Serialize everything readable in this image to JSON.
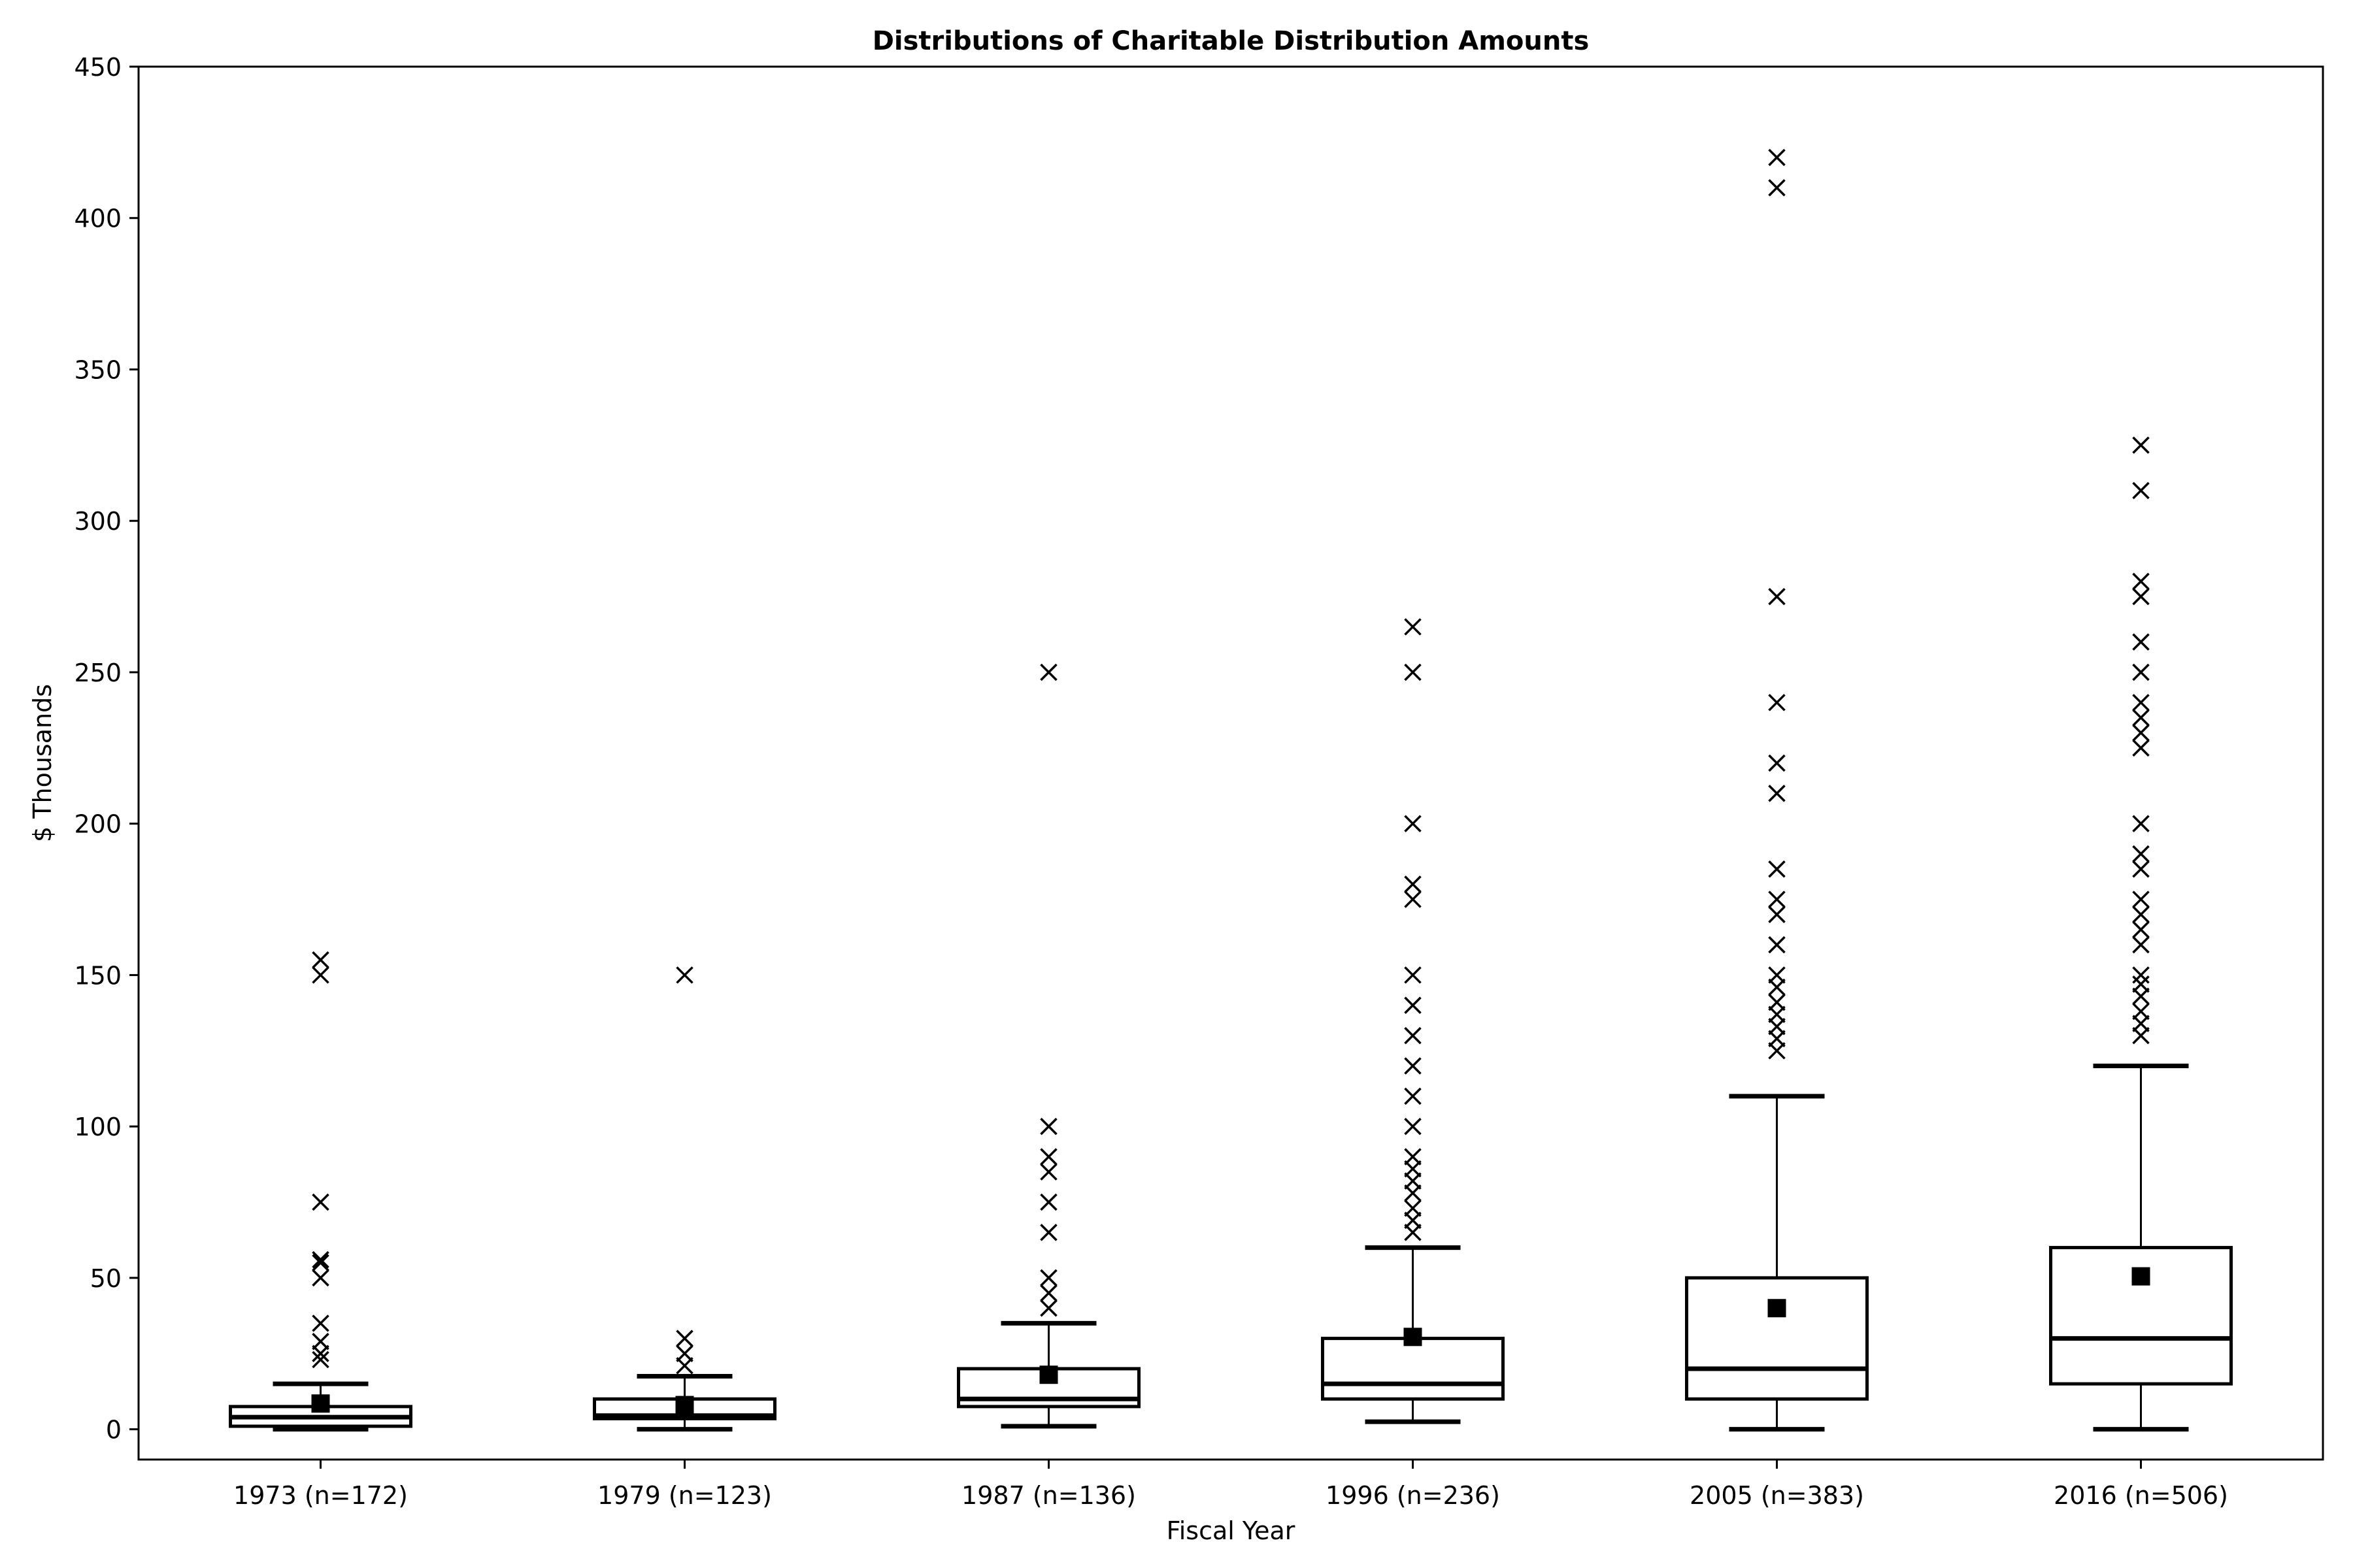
{
  "chart_data": {
    "type": "box",
    "title": "Distributions of Charitable Distribution Amounts",
    "xlabel": "Fiscal Year",
    "ylabel": "$ Thousands",
    "ylim": [
      -10,
      450
    ],
    "yticks": [
      0,
      50,
      100,
      150,
      200,
      250,
      300,
      350,
      400,
      450
    ],
    "grid": false,
    "categories": [
      "1973 (n=172)",
      "1979 (n=123)",
      "1987 (n=136)",
      "1996 (n=236)",
      "2005 (n=383)",
      "2016 (n=506)"
    ],
    "boxes": [
      {
        "whisker_low": 0,
        "q1": 1,
        "median": 4,
        "q3": 7.5,
        "whisker_high": 15,
        "mean": 8.5,
        "outliers": [
          23,
          25,
          29,
          35,
          50,
          55,
          56,
          75,
          150,
          155
        ]
      },
      {
        "whisker_low": 0,
        "q1": 3.5,
        "median": 4.5,
        "q3": 10,
        "whisker_high": 17.5,
        "mean": 8,
        "outliers": [
          21,
          25,
          30,
          150
        ]
      },
      {
        "whisker_low": 1,
        "q1": 7.5,
        "median": 10,
        "q3": 20,
        "whisker_high": 35,
        "mean": 18,
        "outliers": [
          40,
          45,
          50,
          65,
          75,
          85,
          90,
          100,
          250
        ]
      },
      {
        "whisker_low": 2.5,
        "q1": 10,
        "median": 15,
        "q3": 30,
        "whisker_high": 60,
        "mean": 30.5,
        "outliers": [
          65,
          69,
          73,
          78,
          82,
          86,
          90,
          100,
          110,
          120,
          130,
          140,
          150,
          175,
          180,
          200,
          250,
          265
        ]
      },
      {
        "whisker_low": 0,
        "q1": 10,
        "median": 20,
        "q3": 50,
        "whisker_high": 110,
        "mean": 40,
        "outliers": [
          125,
          129,
          133,
          137,
          141,
          146,
          150,
          160,
          170,
          175,
          185,
          210,
          220,
          240,
          275,
          410,
          420
        ]
      },
      {
        "whisker_low": 0,
        "q1": 15,
        "median": 30,
        "q3": 60,
        "whisker_high": 120,
        "mean": 50.5,
        "outliers": [
          130,
          134,
          138,
          143,
          147,
          150,
          160,
          165,
          170,
          175,
          185,
          190,
          200,
          225,
          230,
          235,
          240,
          250,
          260,
          275,
          280,
          310,
          325
        ]
      }
    ]
  }
}
